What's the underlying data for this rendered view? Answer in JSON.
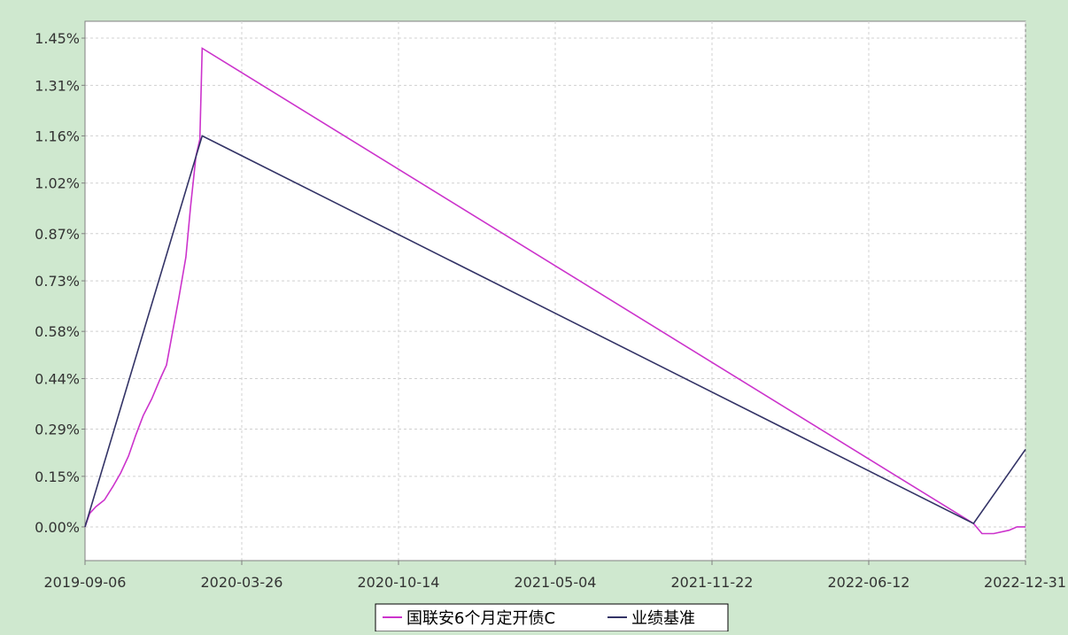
{
  "chart_data": {
    "type": "line",
    "title": "",
    "xlabel": "",
    "ylabel": "",
    "x_ticks": [
      "2019-09-06",
      "2020-03-26",
      "2020-10-14",
      "2021-05-04",
      "2021-11-22",
      "2022-06-12",
      "2022-12-31"
    ],
    "y_ticks": [
      "0.00%",
      "0.15%",
      "0.29%",
      "0.44%",
      "0.58%",
      "0.73%",
      "0.87%",
      "1.02%",
      "1.16%",
      "1.31%",
      "1.45%"
    ],
    "xlim": [
      "2019-09-06",
      "2022-12-31"
    ],
    "ylim": [
      -0.1,
      1.5
    ],
    "y_unit": "%",
    "grid": true,
    "legend_position": "bottom",
    "series": [
      {
        "name": "国联安6个月定开债C",
        "color": "#cc33cc",
        "points": [
          [
            "2019-09-06",
            0.0
          ],
          [
            "2019-09-12",
            0.04
          ],
          [
            "2019-09-20",
            0.06
          ],
          [
            "2019-10-01",
            0.08
          ],
          [
            "2019-10-12",
            0.12
          ],
          [
            "2019-10-22",
            0.16
          ],
          [
            "2019-11-01",
            0.21
          ],
          [
            "2019-11-10",
            0.27
          ],
          [
            "2019-11-20",
            0.33
          ],
          [
            "2019-12-01",
            0.38
          ],
          [
            "2019-12-12",
            0.44
          ],
          [
            "2019-12-20",
            0.48
          ],
          [
            "2019-12-28",
            0.58
          ],
          [
            "2020-01-05",
            0.68
          ],
          [
            "2020-01-14",
            0.8
          ],
          [
            "2020-01-20",
            0.95
          ],
          [
            "2020-01-27",
            1.1
          ],
          [
            "2020-02-01",
            1.15
          ],
          [
            "2020-02-04",
            1.42
          ],
          [
            "2022-10-25",
            0.01
          ],
          [
            "2022-11-05",
            -0.02
          ],
          [
            "2022-11-20",
            -0.02
          ],
          [
            "2022-12-10",
            -0.01
          ],
          [
            "2022-12-20",
            -0.0
          ],
          [
            "2022-12-31",
            0.0
          ]
        ]
      },
      {
        "name": "业绩基准",
        "color": "#333366",
        "points": [
          [
            "2019-09-06",
            0.0
          ],
          [
            "2020-02-04",
            1.16
          ],
          [
            "2022-10-25",
            0.01
          ],
          [
            "2022-12-31",
            0.23
          ]
        ]
      }
    ]
  }
}
